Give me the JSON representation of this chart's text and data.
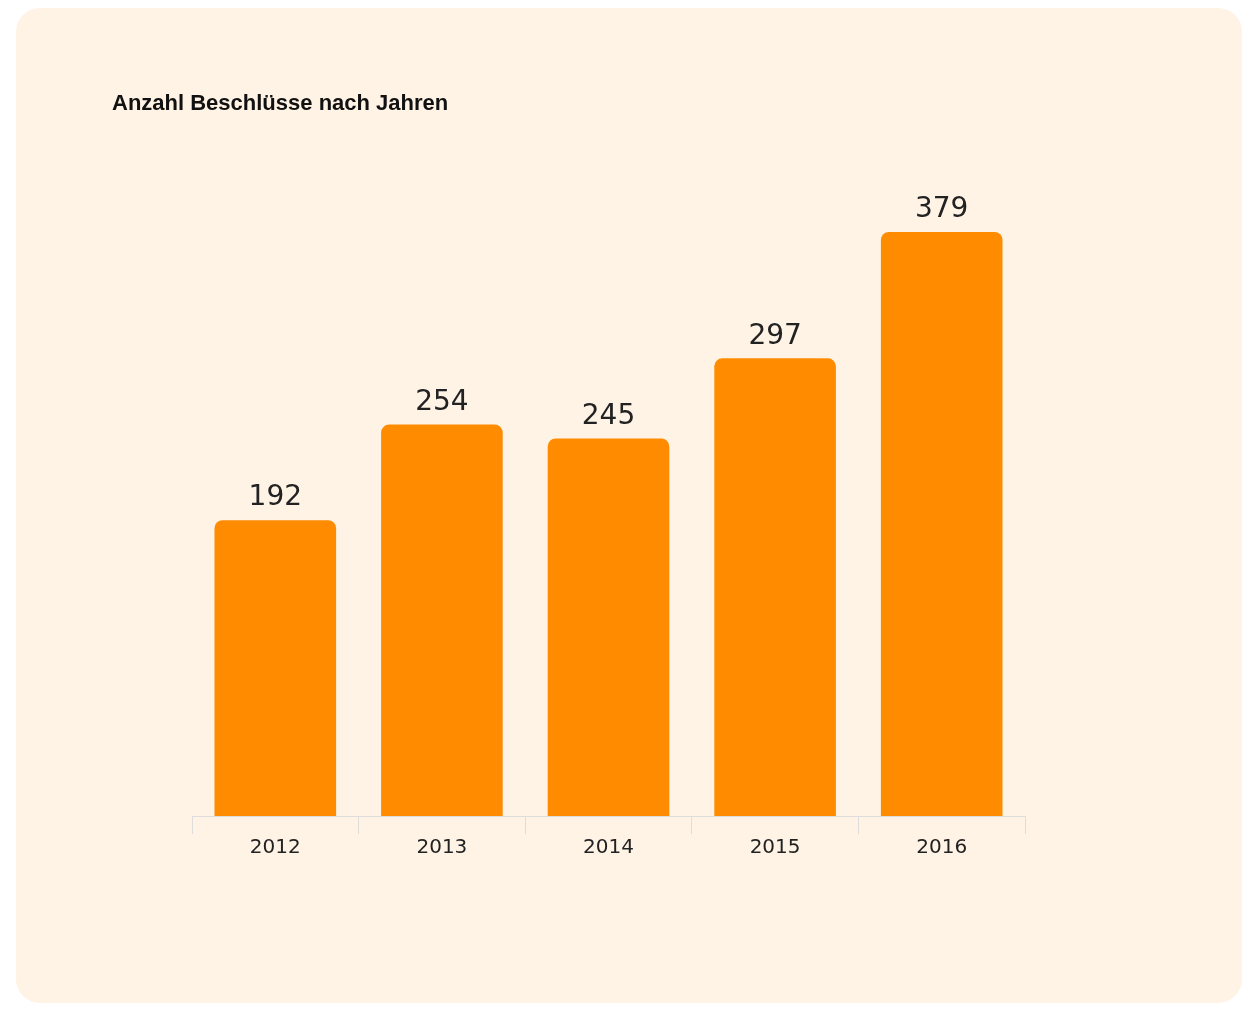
{
  "chart_data": {
    "type": "bar",
    "title": "Anzahl Beschlüsse nach Jahren",
    "categories": [
      "2012",
      "2013",
      "2014",
      "2015",
      "2016"
    ],
    "values": [
      192,
      254,
      245,
      297,
      379
    ],
    "color": "#ff8c00",
    "data_labels": true,
    "grid": false,
    "legend": false
  }
}
